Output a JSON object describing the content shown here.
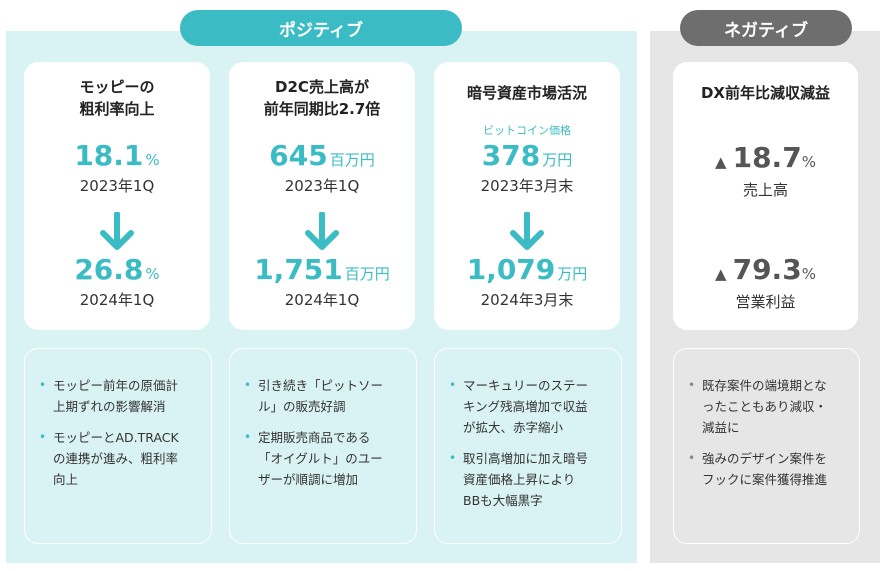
{
  "positive_label": "ポジティブ",
  "negative_label": "ネガティブ",
  "cards": [
    {
      "title_lines": [
        "モッピーの",
        "粗利率向上"
      ],
      "before_value": "18.1",
      "before_unit": "%",
      "before_period": "2023年1Q",
      "after_value": "26.8",
      "after_unit": "%",
      "after_period": "2024年1Q"
    },
    {
      "title_lines": [
        "D2C売上高が",
        "前年同期比2.7倍"
      ],
      "before_value": "645",
      "before_unit": "百万円",
      "before_period": "2023年1Q",
      "after_value": "1,751",
      "after_unit": "百万円",
      "after_period": "2024年1Q"
    },
    {
      "title_lines": [
        "暗号資産市場活況"
      ],
      "small_label": "ビットコイン価格",
      "before_value": "378",
      "before_unit": "万円",
      "before_period": "2023年3月末",
      "after_value": "1,079",
      "after_unit": "万円",
      "after_period": "2024年3月末"
    }
  ],
  "negative_card": {
    "title": "DX前年比減収減益",
    "items": [
      {
        "triangle": "▲",
        "value": "18.7",
        "unit": "%",
        "label": "売上高"
      },
      {
        "triangle": "▲",
        "value": "79.3",
        "unit": "%",
        "label": "営業利益"
      }
    ]
  },
  "notes": [
    {
      "bullets": [
        [
          "モッピー前年の原価計",
          "上期ずれの影響解消"
        ],
        [
          "モッピーとAD.TRACK",
          "の連携が進み、粗利率",
          "向上"
        ]
      ]
    },
    {
      "bullets": [
        [
          "引き続き「ピットソー",
          "ル」の販売好調"
        ],
        [
          "定期販売商品である",
          "「オイグルト」のユー",
          "ザーが順調に増加"
        ]
      ]
    },
    {
      "bullets": [
        [
          "マーキュリーのステー",
          "キング残高増加で収益",
          "が拡大、赤字縮小"
        ],
        [
          "取引高増加に加え暗号",
          "資産価格上昇により",
          "BBも大幅黒字"
        ]
      ]
    },
    {
      "bullets": [
        [
          "既存案件の端境期とな",
          "ったこともあり減収・",
          "減益に"
        ],
        [
          "強みのデザイン案件を",
          "フックに案件獲得推進"
        ]
      ]
    }
  ],
  "colors": {
    "accent": "#3bbcc5",
    "negative": "#6e6e6e",
    "pos_bg": "#d9f2f4",
    "neg_bg": "#e6e6e6"
  },
  "icons": {
    "arrow": "arrow-down-icon"
  }
}
